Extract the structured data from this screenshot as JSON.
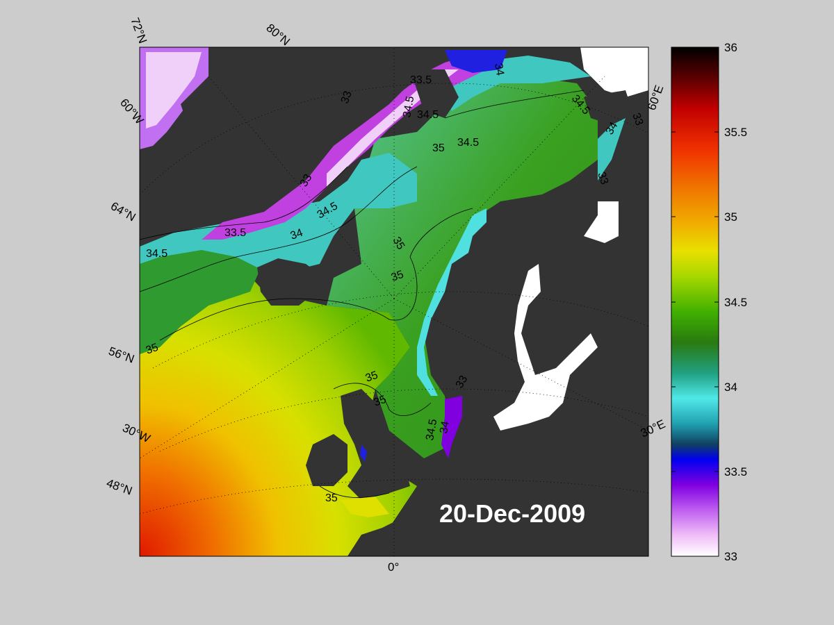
{
  "date_label": "20-Dec-2009",
  "lat_labels": [
    "72°N",
    "80°N",
    "60°W",
    "64°N",
    "56°N",
    "30°W",
    "48°N",
    "0°",
    "30°E",
    "60°E"
  ],
  "contour_labels": [
    "33",
    "33.5",
    "34",
    "34.5",
    "35",
    "34.5",
    "35",
    "34.5",
    "34.5",
    "33.5",
    "33",
    "34.5",
    "34",
    "35",
    "35",
    "35",
    "35",
    "35",
    "33",
    "34.5",
    "34",
    "33",
    "34.5",
    "34",
    "33"
  ],
  "colorbar": {
    "min": 33,
    "max": 36,
    "ticks": [
      "36",
      "35.5",
      "35",
      "34.5",
      "34",
      "33.5",
      "33"
    ],
    "colors": {
      "top": "#000000",
      "t1": "#5a0000",
      "t2": "#c00000",
      "t3": "#f03000",
      "t4": "#f07800",
      "t5": "#f0b000",
      "t6": "#e8e000",
      "t7": "#a8d800",
      "t8": "#40b000",
      "t9": "#2a7a10",
      "t10": "#20a080",
      "t11": "#30d0c0",
      "t12": "#50e8e8",
      "t13": "#20a0b0",
      "t14": "#104060",
      "t15": "#0000f0",
      "t16": "#8000e0",
      "t17": "#c060f0",
      "t18": "#f0c0f8",
      "bottom": "#ffffff"
    }
  },
  "colors": {
    "land": "#333333",
    "ice": "#ffffff",
    "background": "#cccccc"
  }
}
